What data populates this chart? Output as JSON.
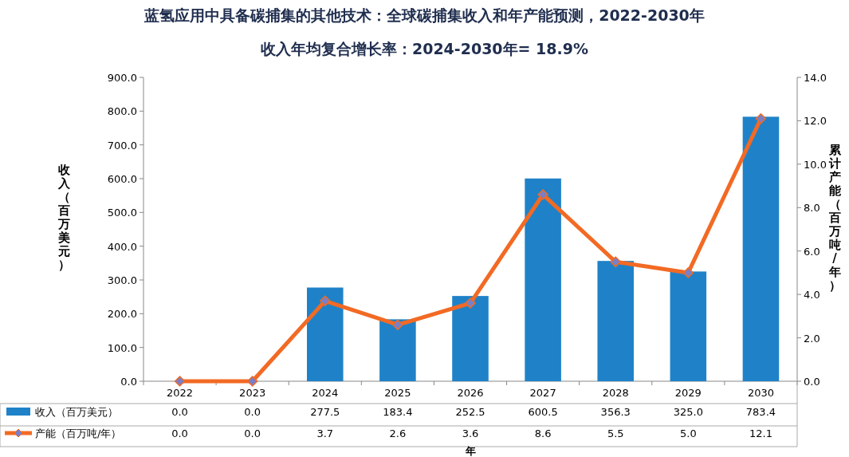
{
  "chart_data": {
    "type": "bar",
    "title": "蓝氢应用中具备碳捕集的其他技术：全球碳捕集收入和年产能预测，2022-2030年",
    "subtitle": "收入年均复合增长率：2024-2030年= 18.9%",
    "xlabel": "年",
    "ylabel": "收入（百万美元）",
    "y2label": "累计产能（百万吨/年）",
    "categories": [
      "2022",
      "2023",
      "2024",
      "2025",
      "2026",
      "2027",
      "2028",
      "2029",
      "2030"
    ],
    "series": [
      {
        "name": "收入（百万美元）",
        "color": "#1f82c8",
        "values": [
          0.0,
          0.0,
          277.5,
          183.4,
          252.5,
          600.5,
          356.3,
          325.0,
          783.4
        ],
        "value_labels": [
          "0.0",
          "0.0",
          "277.5",
          "183.4",
          "252.5",
          "600.5",
          "356.3",
          "325.0",
          "783.4"
        ]
      },
      {
        "name": "产能（百万吨/年）",
        "type": "line",
        "axis": "y2",
        "color": "#f26a24",
        "marker": "diamond",
        "line_style": "solid",
        "values": [
          0.0,
          0.0,
          3.7,
          2.6,
          3.6,
          8.6,
          5.5,
          5.0,
          12.1
        ],
        "value_labels": [
          "0.0",
          "0.0",
          "3.7",
          "2.6",
          "3.6",
          "8.6",
          "5.5",
          "5.0",
          "12.1"
        ]
      }
    ],
    "ylim": [
      0,
      900
    ],
    "yticks": [
      {
        "value": 0,
        "label": "0.0"
      },
      {
        "value": 100,
        "label": "100.0"
      },
      {
        "value": 200,
        "label": "200.0"
      },
      {
        "value": 300,
        "label": "300.0"
      },
      {
        "value": 400,
        "label": "400.0"
      },
      {
        "value": 500,
        "label": "500.0"
      },
      {
        "value": 600,
        "label": "600.0"
      },
      {
        "value": 700,
        "label": "700.0"
      },
      {
        "value": 800,
        "label": "800.0"
      },
      {
        "value": 900,
        "label": "900.0"
      }
    ],
    "y2lim": [
      0,
      14
    ],
    "y2ticks": [
      {
        "value": 0,
        "label": "0.0"
      },
      {
        "value": 2,
        "label": "2.0"
      },
      {
        "value": 4,
        "label": "4.0"
      },
      {
        "value": 6,
        "label": "6.0"
      },
      {
        "value": 8,
        "label": "8.0"
      },
      {
        "value": 10,
        "label": "10.0"
      },
      {
        "value": 12,
        "label": "12.0"
      },
      {
        "value": 14,
        "label": "14.0"
      }
    ],
    "legend": "bottom"
  }
}
